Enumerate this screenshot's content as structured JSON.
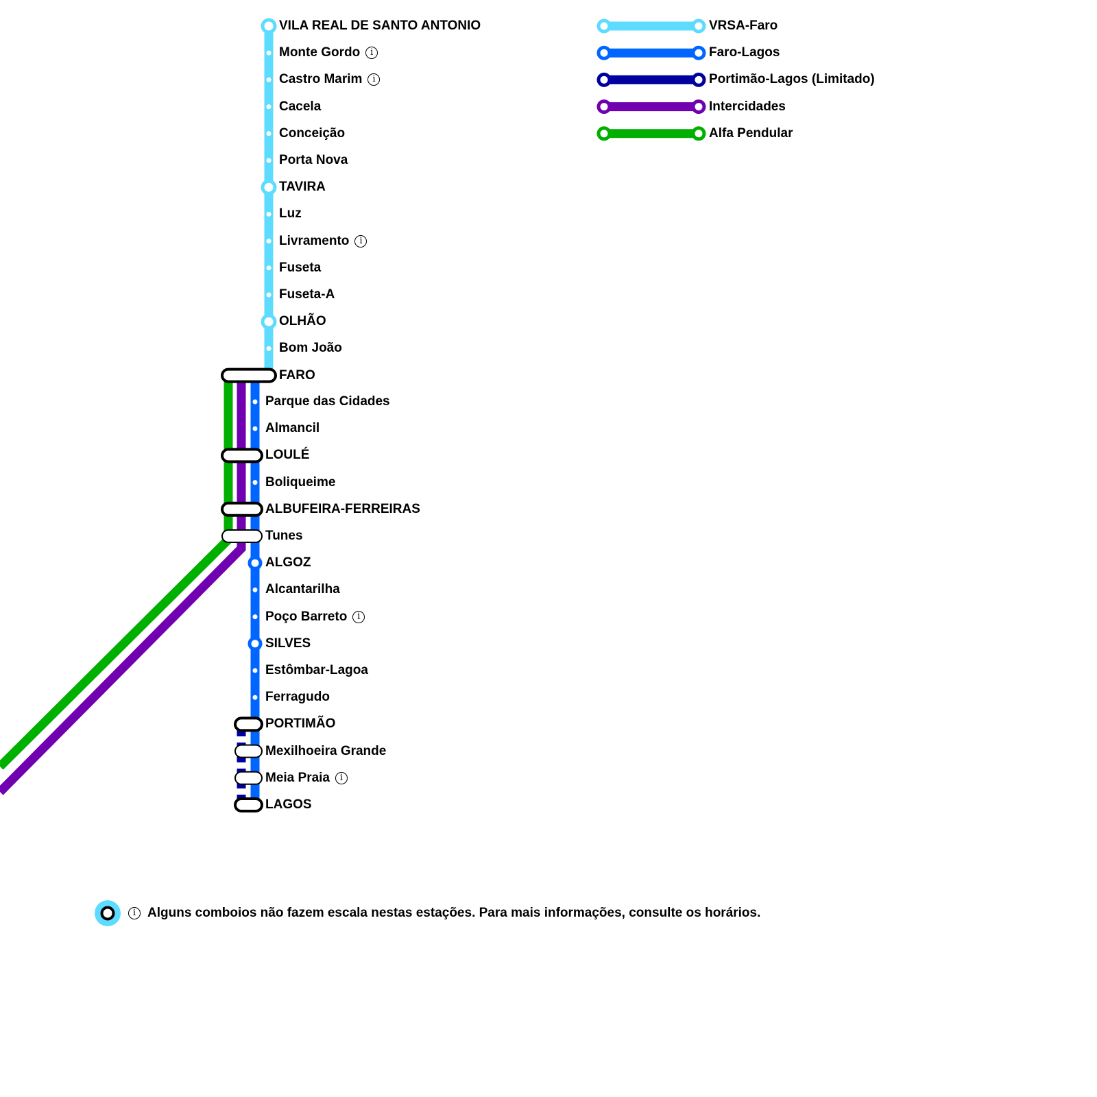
{
  "colors": {
    "vrsa_faro": "#5ddcff",
    "faro_lagos": "#0066ff",
    "portimao_lagos": "#0000a0",
    "intercidades": "#7000b0",
    "alfa_pendular": "#00b000"
  },
  "upper_stations": [
    {
      "name": "VILA REAL DE SANTO ANTONIO",
      "major": true,
      "info": false
    },
    {
      "name": "Monte Gordo",
      "major": false,
      "info": true
    },
    {
      "name": "Castro Marim",
      "major": false,
      "info": true
    },
    {
      "name": "Cacela",
      "major": false,
      "info": false
    },
    {
      "name": "Conceição",
      "major": false,
      "info": false
    },
    {
      "name": "Porta Nova",
      "major": false,
      "info": false
    },
    {
      "name": "TAVIRA",
      "major": true,
      "info": false
    },
    {
      "name": "Luz",
      "major": false,
      "info": false
    },
    {
      "name": "Livramento",
      "major": false,
      "info": true
    },
    {
      "name": "Fuseta",
      "major": false,
      "info": false
    },
    {
      "name": "Fuseta-A",
      "major": false,
      "info": false
    },
    {
      "name": "OLHÃO",
      "major": true,
      "info": false
    },
    {
      "name": "Bom João",
      "major": false,
      "info": false
    },
    {
      "name": "FARO",
      "major": true,
      "info": false
    }
  ],
  "lower_stations": [
    {
      "name": "Parque das Cidades",
      "info": false
    },
    {
      "name": "Almancil",
      "info": false
    },
    {
      "name": "LOULÉ",
      "info": false
    },
    {
      "name": "Boliqueime",
      "info": false
    },
    {
      "name": "ALBUFEIRA-FERREIRAS",
      "info": false
    },
    {
      "name": "Tunes",
      "info": false
    },
    {
      "name": "ALGOZ",
      "info": false
    },
    {
      "name": "Alcantarilha",
      "info": false
    },
    {
      "name": "Poço Barreto",
      "info": true
    },
    {
      "name": "SILVES",
      "info": false
    },
    {
      "name": "Estômbar-Lagoa",
      "info": false
    },
    {
      "name": "Ferragudo",
      "info": false
    },
    {
      "name": "PORTIMÃO",
      "info": false
    },
    {
      "name": "Mexilhoeira Grande",
      "info": false
    },
    {
      "name": "Meia Praia",
      "info": true
    },
    {
      "name": "LAGOS",
      "info": false
    }
  ],
  "legend": [
    {
      "label": "VRSA-Faro",
      "color": "#5ddcff"
    },
    {
      "label": "Faro-Lagos",
      "color": "#0066ff"
    },
    {
      "label": "Portimão-Lagos (Limitado)",
      "color": "#0000a0"
    },
    {
      "label": "Intercidades",
      "color": "#7000b0"
    },
    {
      "label": "Alfa Pendular",
      "color": "#00b000"
    }
  ],
  "footer": {
    "info_glyph": "i",
    "note": "Alguns comboios não fazem escala nestas estações. Para mais informações, consulte os horários."
  }
}
